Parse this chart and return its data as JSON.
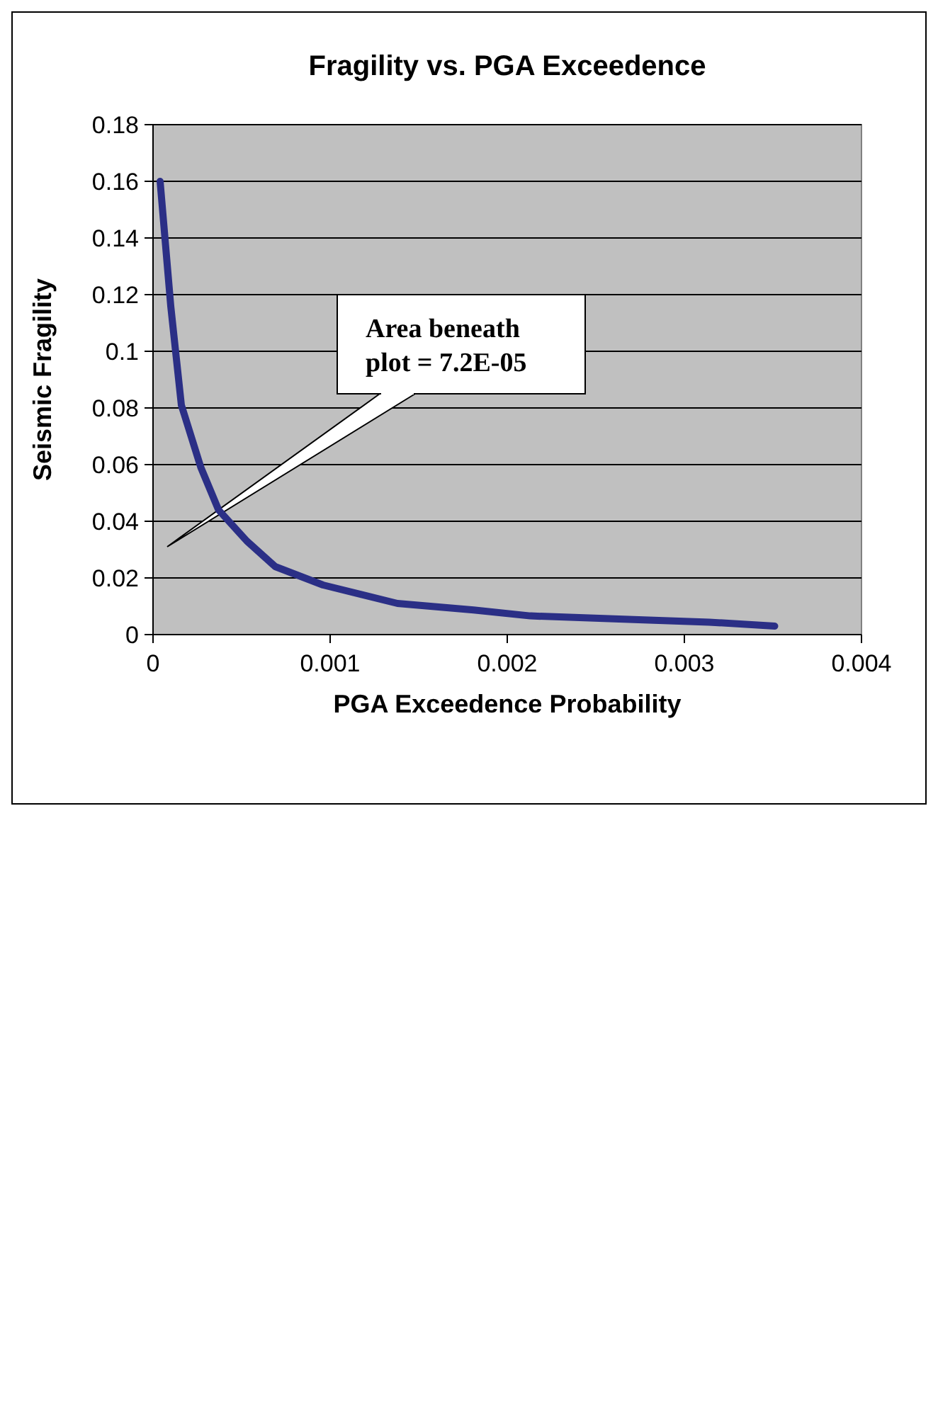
{
  "chart_data": {
    "type": "line",
    "title": "Fragility vs. PGA Exceedence",
    "xlabel": "PGA Exceedence Probability",
    "ylabel": "Seismic Fragility",
    "x": [
      4e-05,
      0.0001,
      0.00016,
      0.00027,
      0.00037,
      0.00053,
      0.00069,
      0.00096,
      0.00138,
      0.00181,
      0.00213,
      0.00277,
      0.00314,
      0.00351
    ],
    "series": [
      {
        "color": "#2b2f86",
        "values": [
          0.16,
          0.116,
          0.081,
          0.059,
          0.044,
          0.033,
          0.024,
          0.0175,
          0.011,
          0.0087,
          0.0066,
          0.0052,
          0.0044,
          0.003
        ]
      }
    ],
    "xlim": [
      0,
      0.004
    ],
    "xticks": [
      0,
      0.001,
      0.002,
      0.003,
      0.004
    ],
    "ylim": [
      0,
      0.18
    ],
    "yticks": [
      0,
      0.02,
      0.04,
      0.06,
      0.08,
      0.1,
      0.12,
      0.14,
      0.16,
      0.18
    ],
    "grid": "y",
    "marker": "none",
    "line_style": "solid",
    "annotations": [
      "Area beneath\nplot = 7.2E-05"
    ]
  }
}
